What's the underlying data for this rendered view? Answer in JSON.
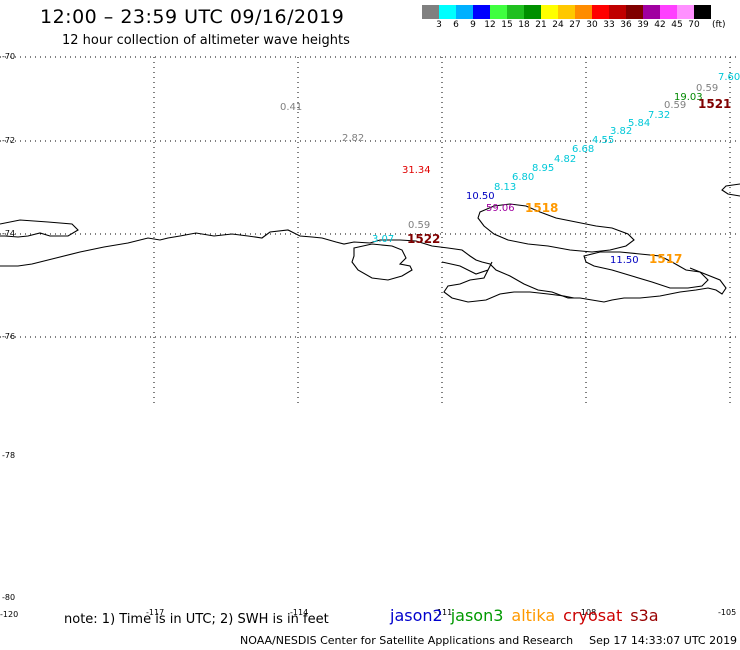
{
  "header": {
    "title": "12:00 – 23:59 UTC 09/16/2019",
    "subtitle": "12 hour collection of altimeter wave heights"
  },
  "legend": {
    "colors": [
      "#808080",
      "#00ffff",
      "#00b0ff",
      "#0000ff",
      "#40ff40",
      "#20c020",
      "#009000",
      "#ffff00",
      "#ffc800",
      "#ff8c00",
      "#ff0000",
      "#c00000",
      "#800000",
      "#a000a0",
      "#ff40ff",
      "#ff90ff",
      "#000000"
    ],
    "labels": [
      "3",
      "6",
      "9",
      "12",
      "15",
      "18",
      "21",
      "24",
      "27",
      "30",
      "33",
      "36",
      "39",
      "42",
      "45",
      "70"
    ],
    "unit": "(ft)"
  },
  "axes": {
    "lat_labels": [
      "-70",
      "-72",
      "-74",
      "-76",
      "-78",
      "-80"
    ],
    "lon_labels": [
      "-120",
      "-117",
      "-114",
      "-111",
      "-108",
      "-105"
    ]
  },
  "observations": [
    {
      "text": "7.60",
      "color": "#00c8d8"
    },
    {
      "text": "0.59",
      "color": "#808080"
    },
    {
      "text": "19.03",
      "color": "#008800"
    },
    {
      "text": "0.59",
      "color": "#808080"
    },
    {
      "text": "7.32",
      "color": "#00c8d8"
    },
    {
      "text": "5.84",
      "color": "#00c8d8"
    },
    {
      "text": "3.82",
      "color": "#00c8d8"
    },
    {
      "text": "4.55",
      "color": "#00c8d8"
    },
    {
      "text": "6.68",
      "color": "#00c8d8"
    },
    {
      "text": "4.82",
      "color": "#00c8d8"
    },
    {
      "text": "8.95",
      "color": "#00c8d8"
    },
    {
      "text": "6.80",
      "color": "#00c8d8"
    },
    {
      "text": "8.13",
      "color": "#00c8d8"
    },
    {
      "text": "10.50",
      "color": "#0000c0"
    },
    {
      "text": "59.06",
      "color": "#a000a0"
    },
    {
      "text": "31.34",
      "color": "#e00000"
    },
    {
      "text": "2.82",
      "color": "#808080"
    },
    {
      "text": "0.41",
      "color": "#808080"
    },
    {
      "text": "0.59",
      "color": "#808080"
    },
    {
      "text": "3.07",
      "color": "#00c8d8"
    },
    {
      "text": "11.50",
      "color": "#0000c0"
    }
  ],
  "time_labels": [
    {
      "text": "1521",
      "color": "#800000"
    },
    {
      "text": "1518",
      "color": "#ff9900"
    },
    {
      "text": "1522",
      "color": "#800000"
    },
    {
      "text": "1517",
      "color": "#ff9900"
    }
  ],
  "footer": {
    "note": "note: 1) Time is in UTC; 2) SWH is in feet",
    "satellites": [
      {
        "name": "jason2",
        "color": "#0000cc"
      },
      {
        "name": "jason3",
        "color": "#009900"
      },
      {
        "name": "altika",
        "color": "#ff9900"
      },
      {
        "name": "cryosat",
        "color": "#cc0000"
      },
      {
        "name": "s3a",
        "color": "#990000"
      }
    ],
    "credit": "NOAA/NESDIS Center for Satellite Applications and Research",
    "timestamp": "Sep 17 14:33:07 UTC 2019"
  }
}
